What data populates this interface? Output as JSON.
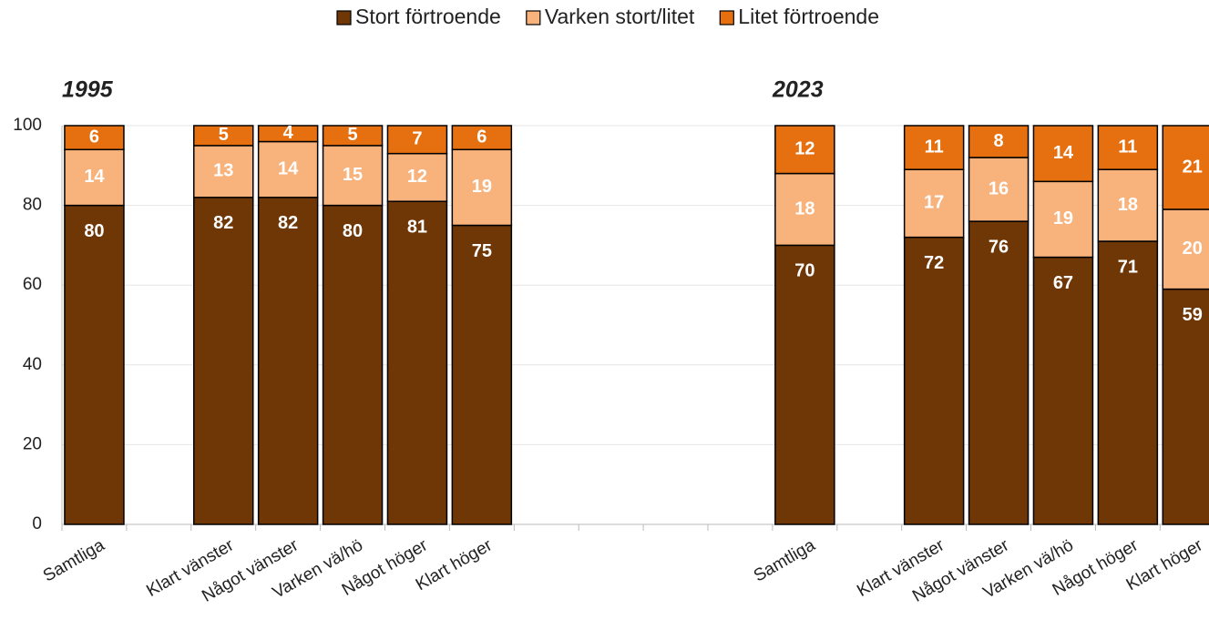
{
  "chart_data": {
    "type": "stacked_bar",
    "annotations": [
      "1995",
      "2023"
    ],
    "categories": [
      "Samtliga",
      null,
      "Klart vänster",
      "Något vänster",
      "Varken vä/hö",
      "Något höger",
      "Klart höger",
      null,
      null,
      null,
      null,
      "Samtliga",
      null,
      "Klart vänster",
      "Något vänster",
      "Varken vä/hö",
      "Något höger",
      "Klart höger"
    ],
    "series": [
      {
        "name": "Stort förtroende",
        "color": "#6f3606",
        "values": [
          80,
          null,
          82,
          82,
          80,
          81,
          75,
          null,
          null,
          null,
          null,
          70,
          null,
          72,
          76,
          67,
          71,
          59
        ]
      },
      {
        "name": "Varken stort/litet",
        "color": "#f8b27c",
        "values": [
          14,
          null,
          13,
          14,
          15,
          12,
          19,
          null,
          null,
          null,
          null,
          18,
          null,
          17,
          16,
          19,
          18,
          20
        ]
      },
      {
        "name": "Litet förtroende",
        "color": "#e6700f",
        "values": [
          6,
          null,
          5,
          4,
          5,
          7,
          6,
          null,
          null,
          null,
          null,
          12,
          null,
          11,
          8,
          14,
          11,
          21
        ]
      }
    ],
    "ylim": [
      0,
      100
    ],
    "yticks": [
      0,
      20,
      40,
      60,
      80,
      100
    ],
    "grid": true,
    "legend": "top"
  }
}
